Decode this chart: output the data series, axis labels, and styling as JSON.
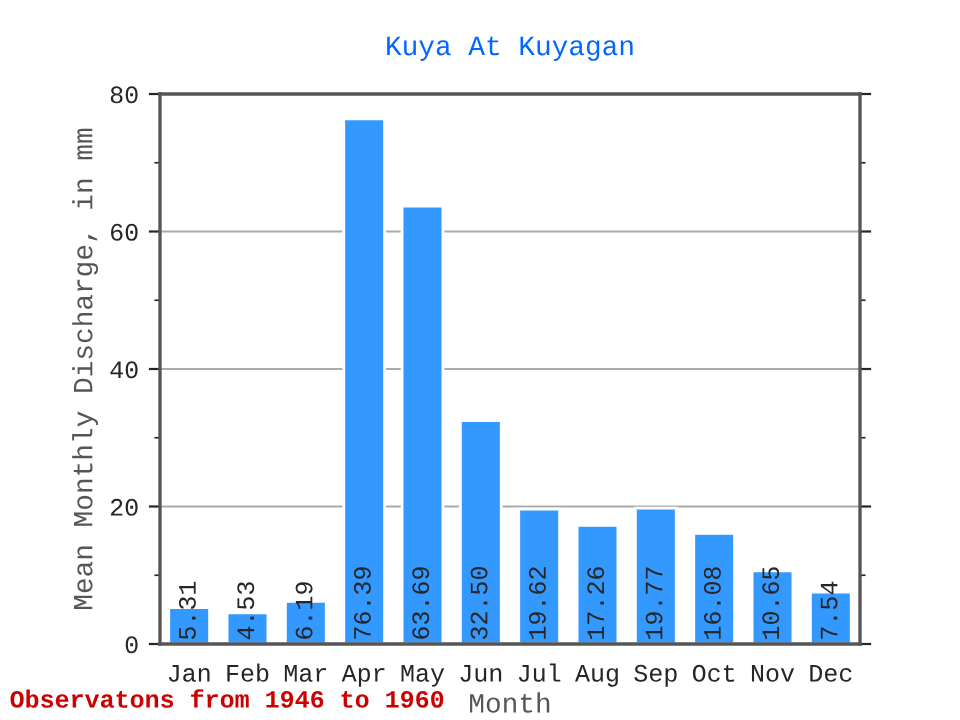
{
  "chart_data": {
    "type": "bar",
    "title": "Kuya At Kuyagan",
    "xlabel": "Month",
    "ylabel": "Mean Monthly Discharge, in mm",
    "categories": [
      "Jan",
      "Feb",
      "Mar",
      "Apr",
      "May",
      "Jun",
      "Jul",
      "Aug",
      "Sep",
      "Oct",
      "Nov",
      "Dec"
    ],
    "values": [
      5.31,
      4.53,
      6.19,
      76.39,
      63.69,
      32.5,
      19.62,
      17.26,
      19.77,
      16.08,
      10.65,
      7.54
    ],
    "value_labels": [
      "5.31",
      "4.53",
      "6.19",
      "76.39",
      "63.69",
      "32.50",
      "19.62",
      "17.26",
      "19.77",
      "16.08",
      "10.65",
      "7.54"
    ],
    "color": "#3399ff",
    "ylim": [
      0,
      80
    ],
    "yticks": [
      0,
      20,
      40,
      60,
      80
    ],
    "grid": "y",
    "annotations": [
      "Observatons from 1946 to 1960"
    ]
  }
}
